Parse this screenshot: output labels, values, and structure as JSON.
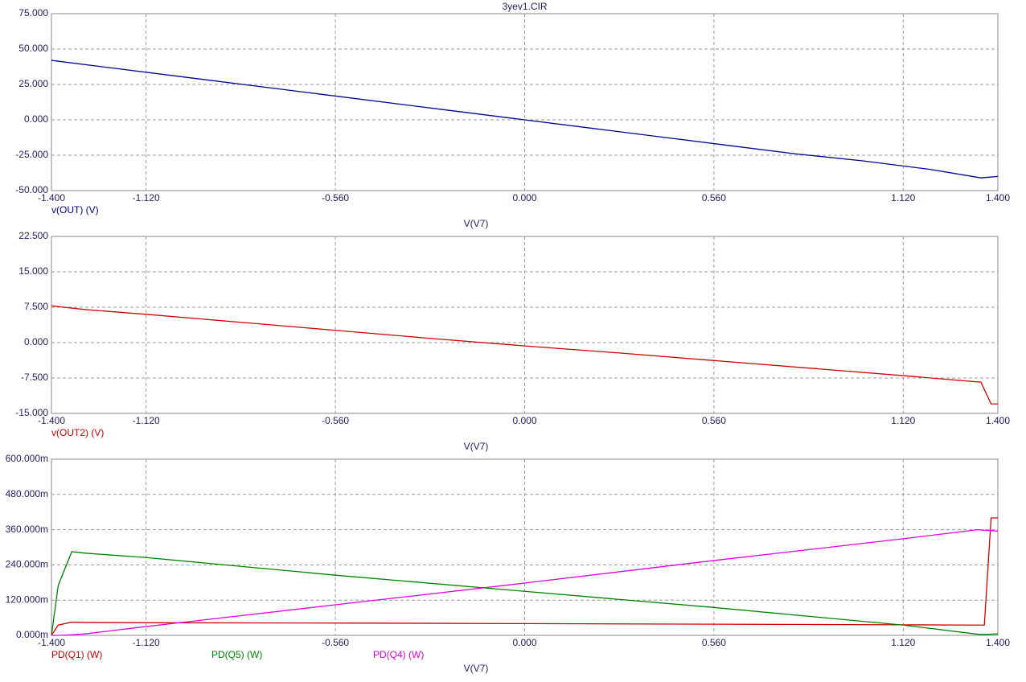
{
  "chart_data": [
    {
      "type": "line",
      "title": "3yev1.CIR",
      "xlabel": "V(V7)",
      "x": [
        -1.4,
        -1.2,
        -1.0,
        -0.8,
        -0.6,
        -0.4,
        -0.2,
        0,
        0.2,
        0.4,
        0.6,
        0.8,
        1.0,
        1.2,
        1.35,
        1.4
      ],
      "series": [
        {
          "name": "v(OUT) (V)",
          "color": "#000090",
          "values": [
            42,
            36,
            30,
            24,
            18,
            12,
            6,
            0,
            -6,
            -12,
            -18,
            -24,
            -29,
            -35,
            -41,
            -40
          ]
        }
      ],
      "xlim": [
        -1.4,
        1.4
      ],
      "xticks": [
        {
          "value": -1.4,
          "label": "-1.400"
        },
        {
          "value": -1.12,
          "label": "-1.120"
        },
        {
          "value": -0.56,
          "label": "-0.560"
        },
        {
          "value": 0,
          "label": "0.000"
        },
        {
          "value": 0.56,
          "label": "0.560"
        },
        {
          "value": 1.12,
          "label": "1.120"
        },
        {
          "value": 1.4,
          "label": "1.400"
        }
      ],
      "ylim": [
        -50,
        75
      ],
      "yticks": [
        {
          "value": 75,
          "label": "75.000"
        },
        {
          "value": 50,
          "label": "50.000"
        },
        {
          "value": 25,
          "label": "25.000"
        },
        {
          "value": 0,
          "label": "0.000"
        },
        {
          "value": -25,
          "label": "-25.000"
        },
        {
          "value": -50,
          "label": "-50.000"
        }
      ],
      "grid": true
    },
    {
      "type": "line",
      "xlabel": "V(V7)",
      "x": [
        -1.4,
        -1.3,
        -1.12,
        -0.84,
        -0.56,
        -0.28,
        0,
        0.28,
        0.56,
        0.84,
        1.12,
        1.35,
        1.38,
        1.4
      ],
      "series": [
        {
          "name": "v(OUT2) (V)",
          "color": "#d00000",
          "values": [
            7.8,
            7,
            6,
            4.3,
            2.6,
            0.9,
            -0.7,
            -2.2,
            -3.8,
            -5.4,
            -7,
            -8.4,
            -13,
            -13
          ]
        }
      ],
      "xlim": [
        -1.4,
        1.4
      ],
      "xticks": [
        {
          "value": -1.4,
          "label": "-1.400"
        },
        {
          "value": -1.12,
          "label": "-1.120"
        },
        {
          "value": -0.56,
          "label": "-0.560"
        },
        {
          "value": 0,
          "label": "0.000"
        },
        {
          "value": 0.56,
          "label": "0.560"
        },
        {
          "value": 1.12,
          "label": "1.120"
        },
        {
          "value": 1.4,
          "label": "1.400"
        }
      ],
      "ylim": [
        -15,
        22.5
      ],
      "yticks": [
        {
          "value": 22.5,
          "label": "22.500"
        },
        {
          "value": 15,
          "label": "15.000"
        },
        {
          "value": 7.5,
          "label": "7.500"
        },
        {
          "value": 0,
          "label": "0.000"
        },
        {
          "value": -7.5,
          "label": "-7.500"
        },
        {
          "value": -15,
          "label": "-15.000"
        }
      ],
      "grid": true
    },
    {
      "type": "line",
      "xlabel": "V(V7)",
      "x": [
        -1.4,
        -1.38,
        -1.34,
        -1.3,
        -1.12,
        -0.56,
        0,
        0.56,
        1.12,
        1.34,
        1.36,
        1.38,
        1.4
      ],
      "series": [
        {
          "name": "PD(Q1) (W)",
          "color": "#d00000",
          "values": [
            0,
            35,
            45,
            44,
            43,
            42,
            40,
            38,
            36,
            35,
            35,
            400,
            400
          ]
        },
        {
          "name": "PD(Q5) (W)",
          "color": "#008000",
          "values": [
            0,
            170,
            285,
            280,
            265,
            205,
            150,
            95,
            35,
            4,
            3,
            4,
            5
          ]
        },
        {
          "name": "PD(Q4) (W)",
          "color": "#e000e0",
          "values": [
            0,
            0,
            2,
            5,
            30,
            104,
            178,
            255,
            329,
            360,
            358,
            357,
            355
          ]
        }
      ],
      "xlim": [
        -1.4,
        1.4
      ],
      "xticks": [
        {
          "value": -1.4,
          "label": "-1.400"
        },
        {
          "value": -1.12,
          "label": "-1.120"
        },
        {
          "value": -0.56,
          "label": "-0.560"
        },
        {
          "value": 0,
          "label": "0.000"
        },
        {
          "value": 0.56,
          "label": "0.560"
        },
        {
          "value": 1.12,
          "label": "1.120"
        },
        {
          "value": 1.4,
          "label": "1.400"
        }
      ],
      "ylim": [
        0,
        600
      ],
      "yticks": [
        {
          "value": 600,
          "label": "600.000m"
        },
        {
          "value": 480,
          "label": "480.000m"
        },
        {
          "value": 360,
          "label": "360.000m"
        },
        {
          "value": 240,
          "label": "240.000m"
        },
        {
          "value": 120,
          "label": "120.000m"
        },
        {
          "value": 0,
          "label": "0.000m"
        }
      ],
      "grid": true
    }
  ]
}
